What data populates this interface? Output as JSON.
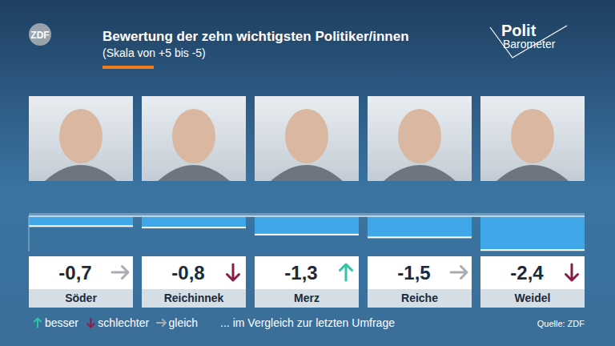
{
  "chart_data": {
    "type": "bar",
    "title": "Bewertung der zehn wichtigsten Politiker/innen",
    "subtitle": "(Skala von +5 bis -5)",
    "logo": "ZDF",
    "brand": [
      "Polit",
      "Barometer"
    ],
    "categories": [
      "Söder",
      "Reichinnek",
      "Merz",
      "Reiche",
      "Weidel"
    ],
    "values": [
      -0.7,
      -0.8,
      -1.3,
      -1.5,
      -2.4
    ],
    "value_labels": [
      "-0,7",
      "-0,8",
      "-1,3",
      "-1,5",
      "-2,4"
    ],
    "trend": [
      "gleich",
      "schlechter",
      "besser",
      "gleich",
      "schlechter"
    ],
    "trend_legend": [
      {
        "name": "besser",
        "color": "#2ec4a6"
      },
      {
        "name": "schlechter",
        "color": "#8a1d45"
      },
      {
        "name": "gleich",
        "color": "#a9adb1"
      }
    ],
    "legend_note": "... im Vergleich zur letzten Umfrage",
    "source": "Quelle: ZDF",
    "color": "#3fa6e8",
    "ylim": [
      -2.5,
      0
    ],
    "yticks": [
      0
    ],
    "grid": false,
    "tick_labels": false,
    "data_labels": true,
    "legend": "bottom-left"
  }
}
